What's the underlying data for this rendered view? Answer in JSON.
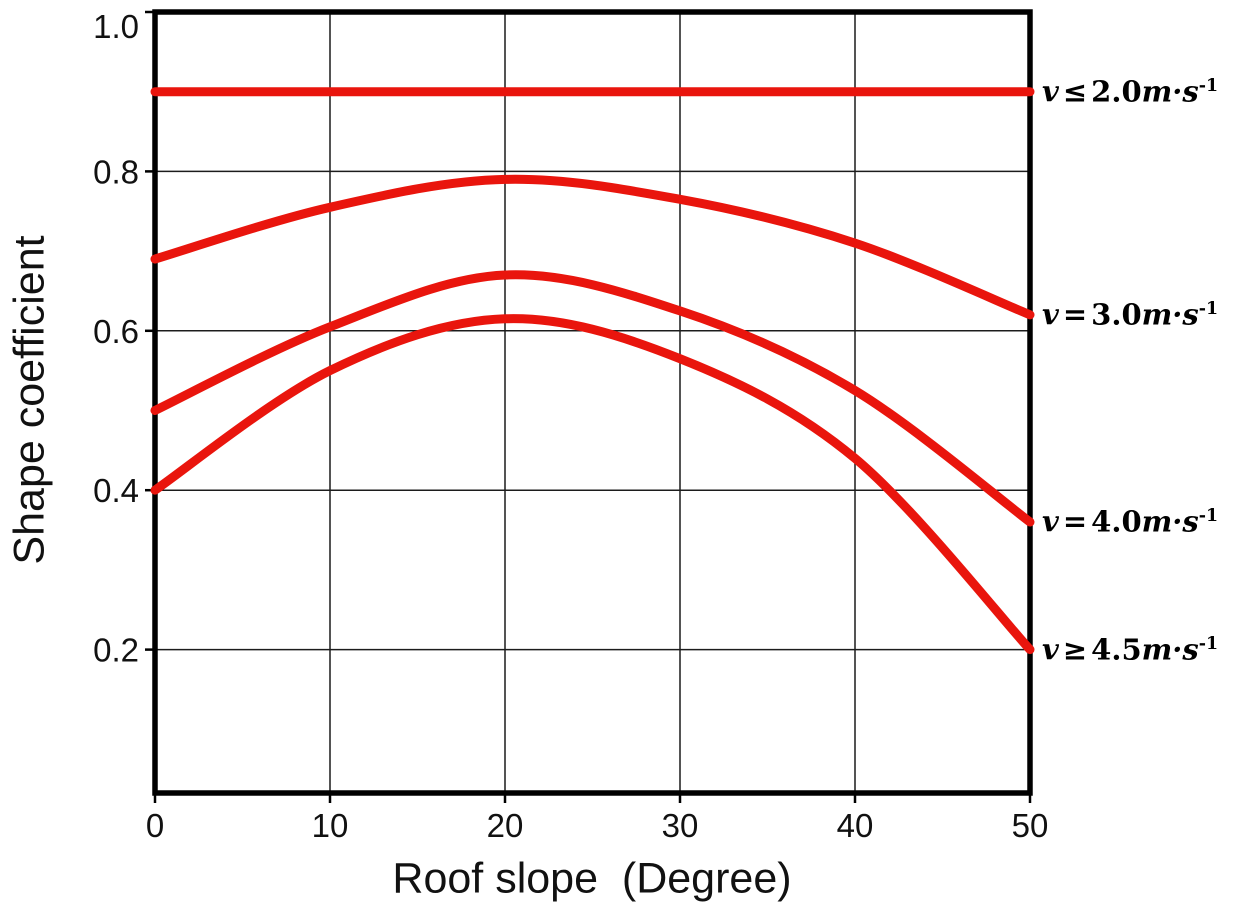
{
  "page": {
    "background": "#ffffff"
  },
  "chart_data": {
    "type": "line",
    "title": "",
    "xlabel": "Roof slope  (Degree)",
    "ylabel": "Shape coefficient",
    "xlim": [
      0,
      50
    ],
    "ylim": [
      0.02,
      1.0
    ],
    "xticks": [
      0,
      10,
      20,
      30,
      40,
      50
    ],
    "xtick_labels": [
      "0",
      "10",
      "20",
      "30",
      "40",
      "50"
    ],
    "yticks": [
      0.2,
      0.4,
      0.6,
      0.8,
      1.0
    ],
    "ytick_labels": [
      "0.2",
      "0.4",
      "0.6",
      "0.8",
      "1.0"
    ],
    "grid": true,
    "legend_position": "right-of-line-ends",
    "line_color": "#e9150d",
    "axis_color": "#000000",
    "x": [
      0,
      10,
      20,
      30,
      40,
      50
    ],
    "series": [
      {
        "name": "v ≤ 2.0 m·s⁻¹",
        "label": {
          "var": "v",
          "op": "≤",
          "value": "2.0",
          "unit": "m·s",
          "exp": "-1"
        },
        "values": [
          0.9,
          0.9,
          0.9,
          0.9,
          0.9,
          0.9
        ]
      },
      {
        "name": "v = 3.0 m·s⁻¹",
        "label": {
          "var": "v",
          "op": "=",
          "value": "3.0",
          "unit": "m·s",
          "exp": "-1"
        },
        "values": [
          0.69,
          0.755,
          0.79,
          0.765,
          0.71,
          0.62
        ]
      },
      {
        "name": "v = 4.0 m·s⁻¹",
        "label": {
          "var": "v",
          "op": "=",
          "value": "4.0",
          "unit": "m·s",
          "exp": "-1"
        },
        "values": [
          0.5,
          0.605,
          0.67,
          0.625,
          0.525,
          0.36
        ]
      },
      {
        "name": "v ≥ 4.5 m·s⁻¹",
        "label": {
          "var": "v",
          "op": "≥",
          "value": "4.5",
          "unit": "m·s",
          "exp": "-1"
        },
        "values": [
          0.4,
          0.55,
          0.615,
          0.565,
          0.44,
          0.2
        ]
      }
    ]
  }
}
